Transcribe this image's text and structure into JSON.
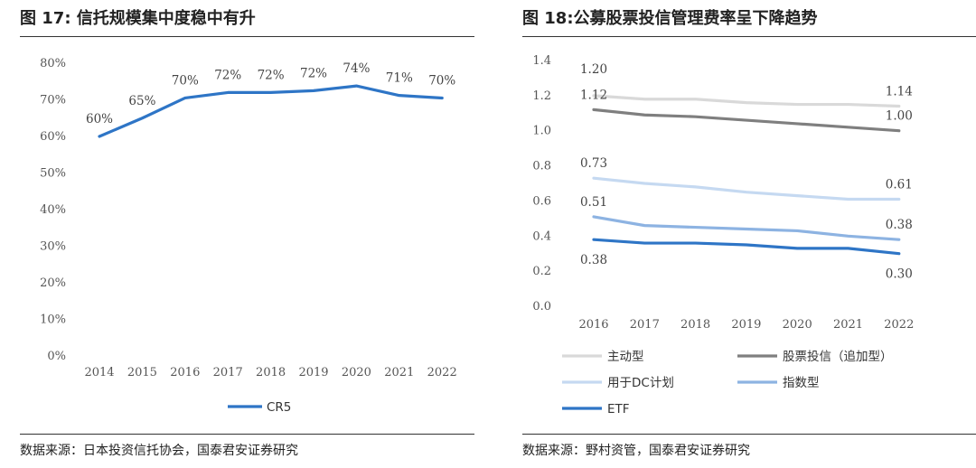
{
  "left": {
    "title": "图 17: 信托规模集中度稳中有升",
    "source": "数据来源：日本投资信托协会，国泰君安证券研究"
  },
  "right": {
    "title": "图 18:公募股票投信管理费率呈下降趋势",
    "source": "数据来源：野村资管，国泰君安证券研究"
  },
  "chart_data": [
    {
      "type": "line",
      "title": "图 17: 信托规模集中度稳中有升",
      "x": [
        "2014",
        "2015",
        "2016",
        "2017",
        "2018",
        "2019",
        "2020",
        "2021",
        "2022"
      ],
      "y_ticks": [
        "0%",
        "10%",
        "20%",
        "30%",
        "40%",
        "50%",
        "60%",
        "70%",
        "80%"
      ],
      "ylim": [
        0,
        80
      ],
      "series": [
        {
          "name": "CR5",
          "color": "#2e75c6",
          "values": [
            60,
            65,
            70.5,
            72,
            72,
            72.5,
            73.8,
            71.2,
            70.5
          ],
          "labels": [
            "60%",
            "65%",
            "70%",
            "72%",
            "72%",
            "72%",
            "74%",
            "71%",
            "70%"
          ]
        }
      ],
      "legend": "bottom",
      "grid": false
    },
    {
      "type": "line",
      "title": "图 18:公募股票投信管理费率呈下降趋势",
      "x": [
        "2016",
        "2017",
        "2018",
        "2019",
        "2020",
        "2021",
        "2022"
      ],
      "y_ticks": [
        "0.0",
        "0.2",
        "0.4",
        "0.6",
        "0.8",
        "1.0",
        "1.2",
        "1.4"
      ],
      "ylim": [
        0,
        1.4
      ],
      "series": [
        {
          "name": "主动型",
          "color": "#d9d9d9",
          "values": [
            1.2,
            1.18,
            1.18,
            1.16,
            1.15,
            1.15,
            1.14
          ],
          "labels": [
            {
              "i": 0,
              "text": "1.20",
              "pos": "above2"
            },
            {
              "i": 6,
              "text": "1.14",
              "pos": "above"
            }
          ]
        },
        {
          "name": "股票投信（追加型）",
          "color": "#7f7f7f",
          "values": [
            1.12,
            1.09,
            1.08,
            1.06,
            1.04,
            1.02,
            1.0
          ],
          "labels": [
            {
              "i": 0,
              "text": "1.12",
              "pos": "above"
            },
            {
              "i": 6,
              "text": "1.00",
              "pos": "above"
            }
          ]
        },
        {
          "name": "用于DC计划",
          "color": "#c5d9f1",
          "values": [
            0.73,
            0.7,
            0.68,
            0.65,
            0.63,
            0.61,
            0.61
          ],
          "labels": [
            {
              "i": 0,
              "text": "0.73",
              "pos": "above"
            },
            {
              "i": 6,
              "text": "0.61",
              "pos": "above"
            }
          ]
        },
        {
          "name": "指数型",
          "color": "#8db3e2",
          "values": [
            0.51,
            0.46,
            0.45,
            0.44,
            0.43,
            0.4,
            0.38
          ],
          "labels": [
            {
              "i": 0,
              "text": "0.51",
              "pos": "above"
            },
            {
              "i": 6,
              "text": "0.38",
              "pos": "above"
            }
          ]
        },
        {
          "name": "ETF",
          "color": "#2e75c6",
          "values": [
            0.38,
            0.36,
            0.36,
            0.35,
            0.33,
            0.33,
            0.3
          ],
          "labels": [
            {
              "i": 0,
              "text": "0.38",
              "pos": "below"
            },
            {
              "i": 6,
              "text": "0.30",
              "pos": "below"
            }
          ]
        }
      ],
      "legend": "bottom",
      "grid": false
    }
  ]
}
